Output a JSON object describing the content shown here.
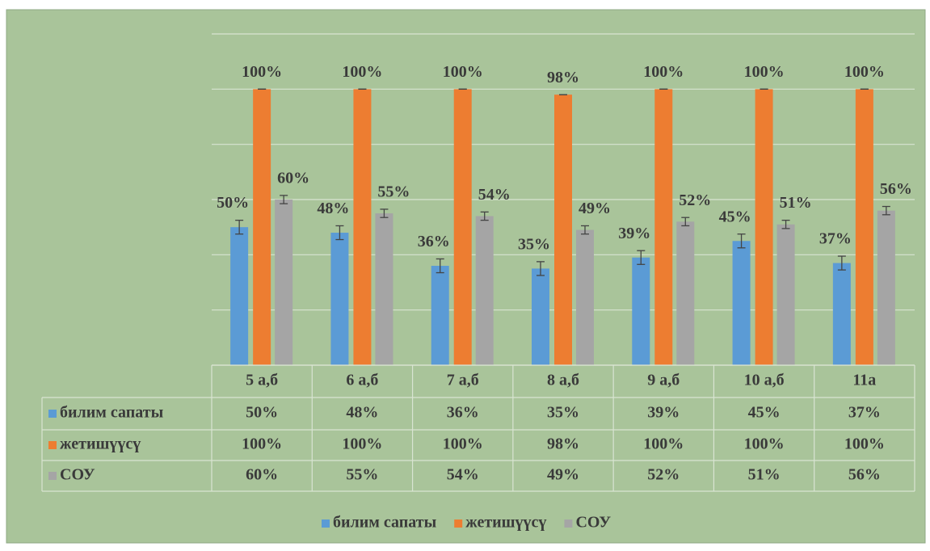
{
  "chart_data": {
    "type": "bar",
    "categories": [
      "5 а,б",
      "6 а,б",
      "7 а,б",
      "8 а,б",
      "9 а,б",
      "10 а,б",
      "11а"
    ],
    "series": [
      {
        "name": "билим сапаты",
        "color": "#5b9bd5",
        "values": [
          50,
          48,
          36,
          35,
          39,
          45,
          37
        ],
        "value_labels": [
          "50%",
          "48%",
          "36%",
          "35%",
          "39%",
          "45%",
          "37%"
        ],
        "error": 2.5
      },
      {
        "name": "жетишүүсү",
        "color": "#ed7d31",
        "values": [
          100,
          100,
          100,
          98,
          100,
          100,
          100
        ],
        "value_labels": [
          "100%",
          "100%",
          "100%",
          "98%",
          "100%",
          "100%",
          "100%"
        ],
        "error": 0
      },
      {
        "name": "СОУ",
        "color": "#a5a5a5",
        "values": [
          60,
          55,
          54,
          49,
          52,
          51,
          56
        ],
        "value_labels": [
          "60%",
          "55%",
          "54%",
          "49%",
          "52%",
          "51%",
          "56%"
        ],
        "error": 1.5
      }
    ],
    "ylim": [
      0,
      120
    ],
    "yticks": [
      0,
      20,
      40,
      60,
      80,
      100,
      120
    ],
    "grid": true,
    "legend": "bottom",
    "data_table": true
  }
}
